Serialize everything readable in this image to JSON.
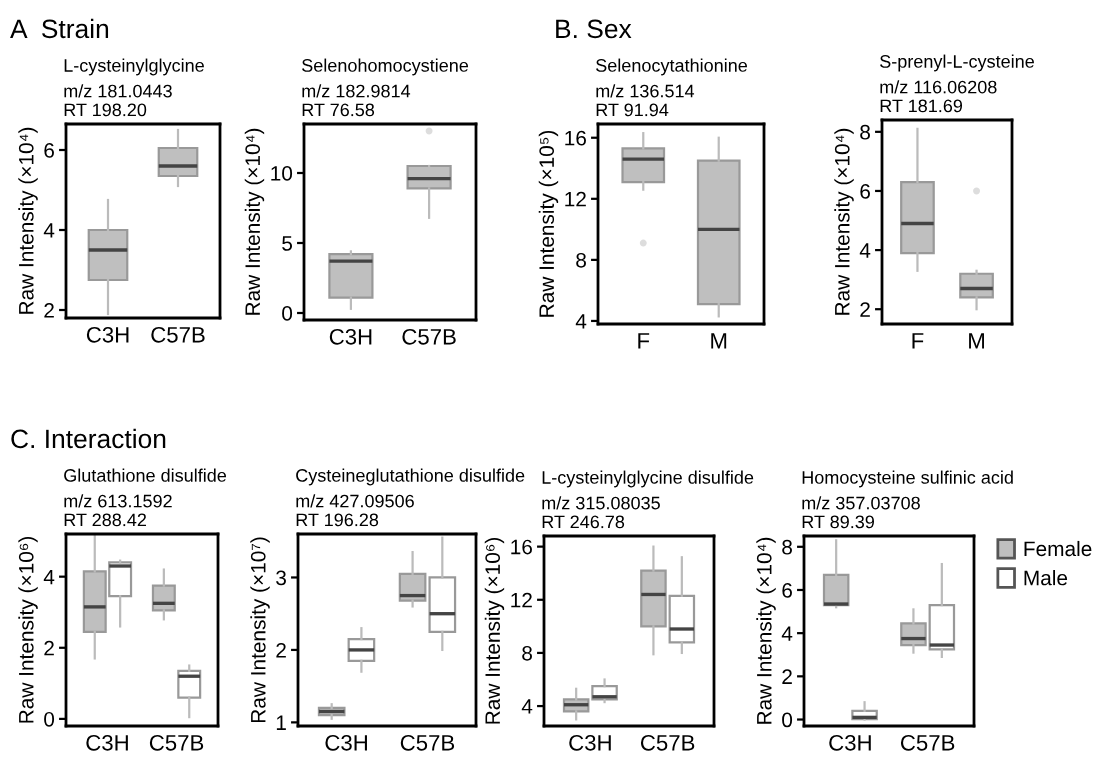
{
  "chart_data": [
    {
      "type": "box",
      "title": "L-cysteinylglycine",
      "subtitle": "m/z 181.0443\nRT 198.20",
      "ylabel": "Raw Intensity (×10⁴)",
      "annotations": [
        "A  Strain"
      ],
      "categories": [
        "C3H",
        "C57B"
      ],
      "color": "#bfbfbf",
      "ylim": [
        1.8,
        6.65
      ],
      "yticks": [
        2,
        4,
        6
      ],
      "grid": false,
      "legend": false,
      "boxes": [
        {
          "low": 1.9,
          "q1": 2.75,
          "median": 3.5,
          "q3": 4.0,
          "high": 4.75
        },
        {
          "low": 5.1,
          "q1": 5.35,
          "median": 5.6,
          "q3": 6.05,
          "high": 6.5
        }
      ]
    },
    {
      "type": "box",
      "title": "Selenohomocystiene",
      "subtitle": "m/z 182.9814\nRT 76.58",
      "ylabel": "Raw Intensity (×10⁴)",
      "categories": [
        "C3H",
        "C57B"
      ],
      "color": "#bfbfbf",
      "ylim": [
        -0.5,
        13.5
      ],
      "yticks": [
        0,
        5,
        10
      ],
      "grid": false,
      "legend": false,
      "boxes": [
        {
          "low": 0.3,
          "q1": 1.1,
          "median": 3.7,
          "q3": 4.2,
          "high": 4.4
        },
        {
          "low": 6.8,
          "q1": 8.9,
          "median": 9.6,
          "q3": 10.5,
          "high": 10.5,
          "outliers": [
            13.0
          ]
        }
      ]
    },
    {
      "type": "box",
      "title": "Selenocytathionine",
      "subtitle": "m/z 136.514\nRT 91.94",
      "ylabel": "Raw Intensity (×10⁵)",
      "annotations": [
        "B. Sex"
      ],
      "categories": [
        "F",
        "M"
      ],
      "color": "#bfbfbf",
      "ylim": [
        3.8,
        16.9
      ],
      "yticks": [
        4,
        8,
        12,
        16
      ],
      "grid": false,
      "legend": false,
      "boxes": [
        {
          "low": 12.6,
          "q1": 13.1,
          "median": 14.6,
          "q3": 15.3,
          "high": 16.3,
          "outliers": [
            9.1
          ]
        },
        {
          "low": 4.3,
          "q1": 5.1,
          "median": 10.0,
          "q3": 14.5,
          "high": 16.0
        }
      ]
    },
    {
      "type": "box",
      "title": "S-prenyl-L-cysteine",
      "subtitle": "m/z 116.06208\nRT 181.69",
      "ylabel": "Raw Intensity (×10⁴)",
      "categories": [
        "F",
        "M"
      ],
      "color": "#bfbfbf",
      "ylim": [
        1.5,
        8.4
      ],
      "yticks": [
        2,
        4,
        6,
        8
      ],
      "grid": false,
      "legend": false,
      "boxes": [
        {
          "low": 3.3,
          "q1": 3.9,
          "median": 4.9,
          "q3": 6.3,
          "high": 8.1
        },
        {
          "low": 2.0,
          "q1": 2.4,
          "median": 2.7,
          "q3": 3.2,
          "high": 3.3,
          "outliers": [
            6.0
          ]
        }
      ]
    },
    {
      "type": "box",
      "title": "Glutathione disulfide",
      "subtitle": "m/z 613.1592\nRT 288.42",
      "ylabel": "Raw Intensity (×10⁶)",
      "annotations": [
        "C. Interaction"
      ],
      "categories": [
        "C3H",
        "C57B"
      ],
      "ylim": [
        -0.2,
        5.2
      ],
      "yticks": [
        0,
        2,
        4
      ],
      "grid": false,
      "legend": false,
      "series": [
        {
          "color": "#bfbfbf",
          "boxes": [
            {
              "low": 1.7,
              "q1": 2.45,
              "median": 3.15,
              "q3": 4.15,
              "high": 5.15
            },
            {
              "low": 2.8,
              "q1": 3.05,
              "median": 3.25,
              "q3": 3.75,
              "high": 4.2
            }
          ]
        },
        {
          "color": "#ffffff",
          "boxes": [
            {
              "low": 2.6,
              "q1": 3.45,
              "median": 4.3,
              "q3": 4.4,
              "high": 4.45
            },
            {
              "low": 0.05,
              "q1": 0.6,
              "median": 1.2,
              "q3": 1.35,
              "high": 1.5
            }
          ]
        }
      ]
    },
    {
      "type": "box",
      "title": "Cysteineglutathione disulfide",
      "subtitle": "m/z 427.09506\nRT 196.28",
      "ylabel": "Raw Intensity (×10⁷)",
      "categories": [
        "C3H",
        "C57B"
      ],
      "ylim": [
        0.95,
        3.6
      ],
      "yticks": [
        1,
        2,
        3
      ],
      "grid": false,
      "legend": false,
      "series": [
        {
          "color": "#bfbfbf",
          "boxes": [
            {
              "low": 1.05,
              "q1": 1.1,
              "median": 1.15,
              "q3": 1.2,
              "high": 1.25
            },
            {
              "low": 2.6,
              "q1": 2.68,
              "median": 2.75,
              "q3": 3.05,
              "high": 3.35
            }
          ]
        },
        {
          "color": "#ffffff",
          "boxes": [
            {
              "low": 1.7,
              "q1": 1.85,
              "median": 2.0,
              "q3": 2.15,
              "high": 2.3
            },
            {
              "low": 2.0,
              "q1": 2.25,
              "median": 2.5,
              "q3": 3.0,
              "high": 3.55
            }
          ]
        }
      ]
    },
    {
      "type": "box",
      "title": "L-cysteinylglycine disulfide",
      "subtitle": "m/z 315.08035\nRT 246.78",
      "ylabel": "Raw Intensity (×10⁶)",
      "categories": [
        "C3H",
        "C57B"
      ],
      "ylim": [
        2.5,
        16.8
      ],
      "yticks": [
        4,
        8,
        12,
        16
      ],
      "grid": false,
      "legend": false,
      "series": [
        {
          "color": "#bfbfbf",
          "boxes": [
            {
              "low": 3.0,
              "q1": 3.6,
              "median": 4.1,
              "q3": 4.5,
              "high": 5.3
            },
            {
              "low": 7.9,
              "q1": 10.0,
              "median": 12.4,
              "q3": 14.2,
              "high": 16.0
            }
          ]
        },
        {
          "color": "#ffffff",
          "boxes": [
            {
              "low": 4.3,
              "q1": 4.5,
              "median": 4.7,
              "q3": 5.5,
              "high": 6.0
            },
            {
              "low": 8.0,
              "q1": 8.8,
              "median": 9.8,
              "q3": 12.3,
              "high": 15.2
            }
          ]
        }
      ]
    },
    {
      "type": "box",
      "title": "Homocysteine sulfinic acid",
      "subtitle": "m/z 357.03708\nRT 89.39",
      "ylabel": "Raw Intensity (×10⁴)",
      "categories": [
        "C3H",
        "C57B"
      ],
      "ylim": [
        -0.3,
        8.5
      ],
      "yticks": [
        0,
        2,
        4,
        6,
        8
      ],
      "grid": false,
      "legend": "right",
      "series": [
        {
          "name": "Female",
          "color": "#bfbfbf",
          "boxes": [
            {
              "low": 5.2,
              "q1": 5.3,
              "median": 5.35,
              "q3": 6.7,
              "high": 8.3
            },
            {
              "low": 3.1,
              "q1": 3.45,
              "median": 3.75,
              "q3": 4.45,
              "high": 5.1
            }
          ]
        },
        {
          "name": "Male",
          "color": "#ffffff",
          "boxes": [
            {
              "low": 0.0,
              "q1": 0.02,
              "median": 0.1,
              "q3": 0.4,
              "high": 0.8
            },
            {
              "low": 2.9,
              "q1": 3.25,
              "median": 3.45,
              "q3": 5.3,
              "high": 7.2
            }
          ]
        }
      ]
    }
  ]
}
